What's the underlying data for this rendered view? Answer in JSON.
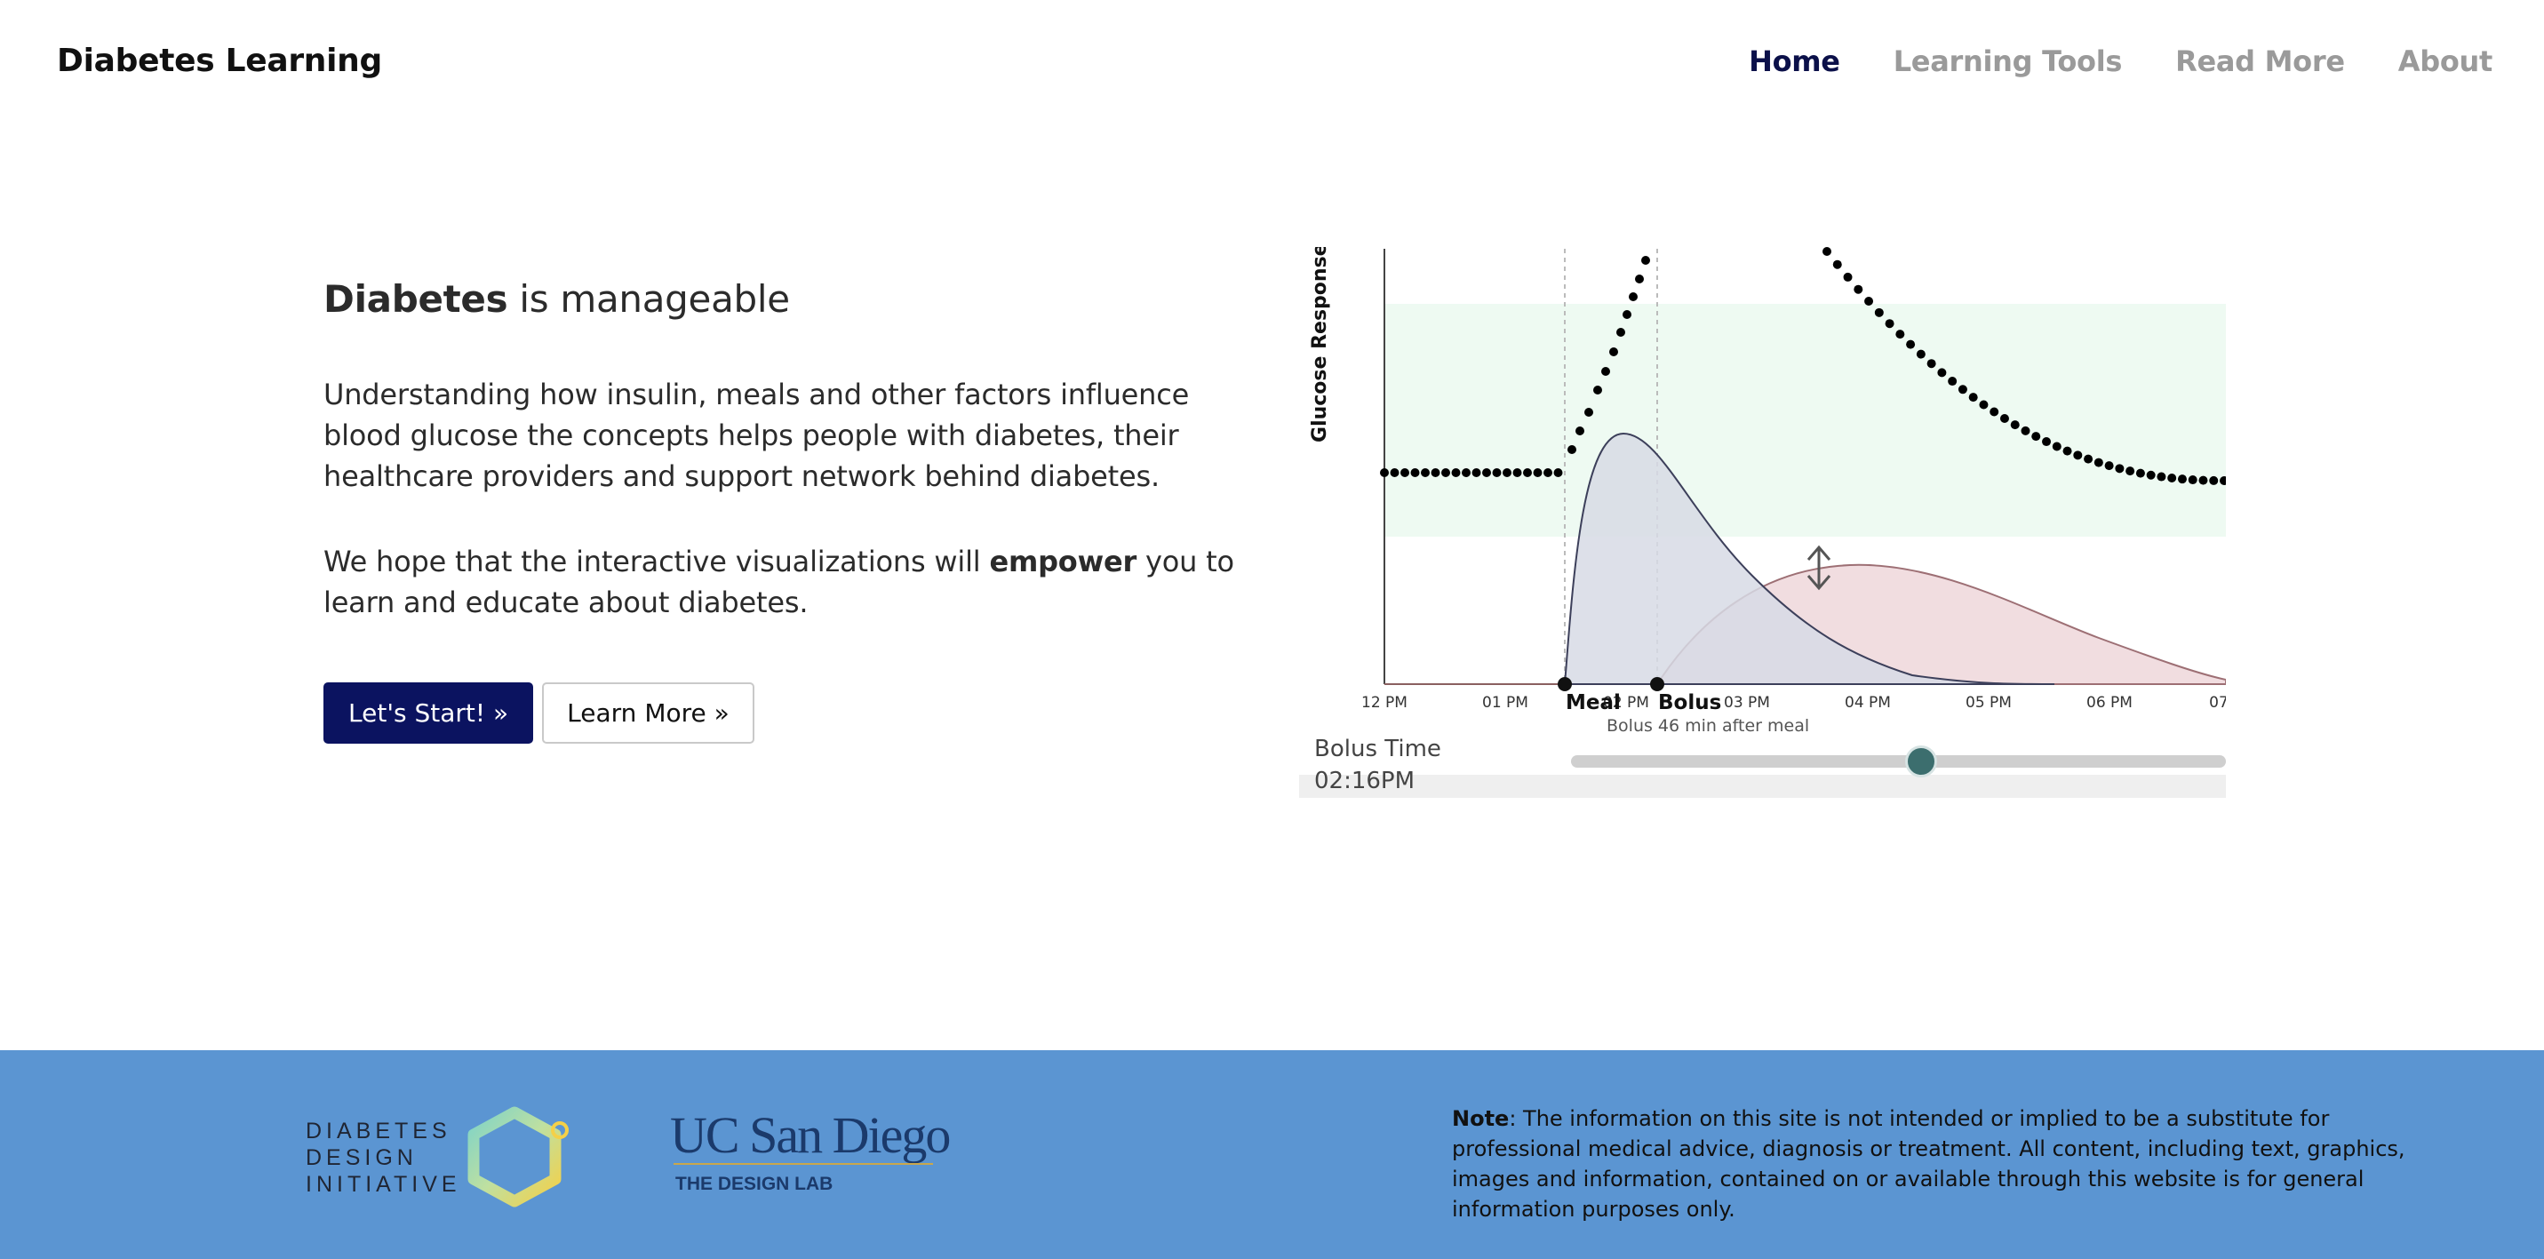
{
  "nav": {
    "brand": "Diabetes Learning",
    "links": [
      "Home",
      "Learning Tools",
      "Read More",
      "About"
    ]
  },
  "hero": {
    "title_bold": "Diabetes",
    "title_rest": " is manageable",
    "p1": "Understanding how insulin, meals and other factors influence blood glucose the concepts helps people with diabetes, their healthcare providers and support network behind diabetes.",
    "p2_before": "We hope that the interactive visualizations will ",
    "p2_bold": "empower",
    "p2_after": " you to learn and educate about diabetes.",
    "primary_button": "Let's Start! »",
    "secondary_button": "Learn More »"
  },
  "visualization": {
    "y_label": "Glucose Response",
    "x_ticks": [
      "12 PM",
      "01 PM",
      "02 PM",
      "03 PM",
      "04 PM",
      "05 PM",
      "06 PM",
      "07"
    ],
    "meal_label": "Meal",
    "bolus_label": "Bolus",
    "bolus_note": "Bolus 46 min after meal",
    "slider_label": "Bolus Time",
    "slider_value": "02:16PM",
    "slider_fraction": 0.73,
    "colors": {
      "target_band": "#eefaf2",
      "meal_curve": "#d7dae5",
      "insulin_curve": "#efd7da",
      "glucose_dots": "#000000",
      "slider_thumb": "#3c6e6e"
    }
  },
  "footer": {
    "ddi_lines": [
      "DIABETES",
      "DESIGN",
      "INITIATIVE"
    ],
    "ucsd_name": "UC San Diego",
    "ucsd_sub": "THE DESIGN LAB",
    "note_label": "Note",
    "note_text": ": The information on this site is not intended or implied to be a substitute for professional medical advice, diagnosis or treatment. All content, including text, graphics, images and information, contained on or available through this website is for general information purposes only."
  }
}
